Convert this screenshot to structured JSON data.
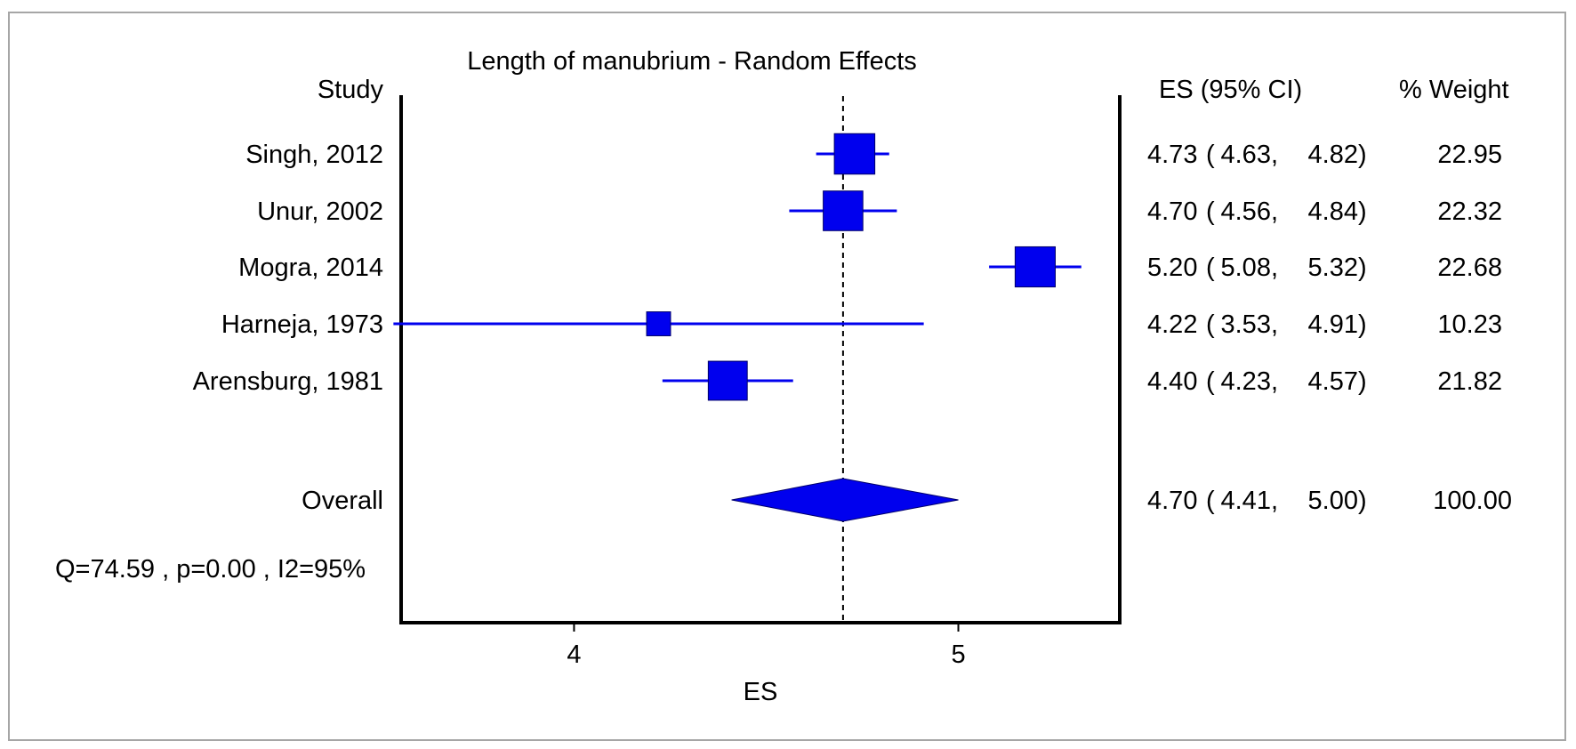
{
  "chart_data": {
    "type": "forest",
    "title": "Length of manubrium - Random Effects",
    "xlabel": "ES",
    "study_header": "Study",
    "es_header": "ES (95% CI)",
    "weight_header": "% Weight",
    "xlim": [
      3.55,
      5.42
    ],
    "xticks": [
      4,
      5
    ],
    "reference_line": 4.7,
    "studies": [
      {
        "name": "Singh, 2012",
        "es": 4.73,
        "lo": 4.63,
        "hi": 4.82,
        "es_text": "4.73",
        "lo_text": "4.63",
        "hi_text": "4.82",
        "weight_text": "22.95",
        "weight": 22.95
      },
      {
        "name": "Unur, 2002",
        "es": 4.7,
        "lo": 4.56,
        "hi": 4.84,
        "es_text": "4.70",
        "lo_text": "4.56",
        "hi_text": "4.84",
        "weight_text": "22.32",
        "weight": 22.32
      },
      {
        "name": "Mogra, 2014",
        "es": 5.2,
        "lo": 5.08,
        "hi": 5.32,
        "es_text": "5.20",
        "lo_text": "5.08",
        "hi_text": "5.32",
        "weight_text": "22.68",
        "weight": 22.68
      },
      {
        "name": "Harneja, 1973",
        "es": 4.22,
        "lo": 3.53,
        "hi": 4.91,
        "es_text": "4.22",
        "lo_text": "3.53",
        "hi_text": "4.91",
        "weight_text": "10.23",
        "weight": 10.23
      },
      {
        "name": "Arensburg, 1981",
        "es": 4.4,
        "lo": 4.23,
        "hi": 4.57,
        "es_text": "4.40",
        "lo_text": "4.23",
        "hi_text": "4.57",
        "weight_text": "21.82",
        "weight": 21.82
      }
    ],
    "overall": {
      "name": "Overall",
      "es": 4.7,
      "lo": 4.41,
      "hi": 5.0,
      "es_text": "4.70",
      "lo_text": "4.41",
      "hi_text": "5.00",
      "weight_text": "100.00"
    },
    "heterogeneity": "Q=74.59 , p=0.00 , I2=95%",
    "colors": {
      "title": "#1a1a8c",
      "marker": "#0000ee",
      "ci_line": "#0000ee",
      "axis": "#000000",
      "frame": "#a6a6a6"
    }
  }
}
